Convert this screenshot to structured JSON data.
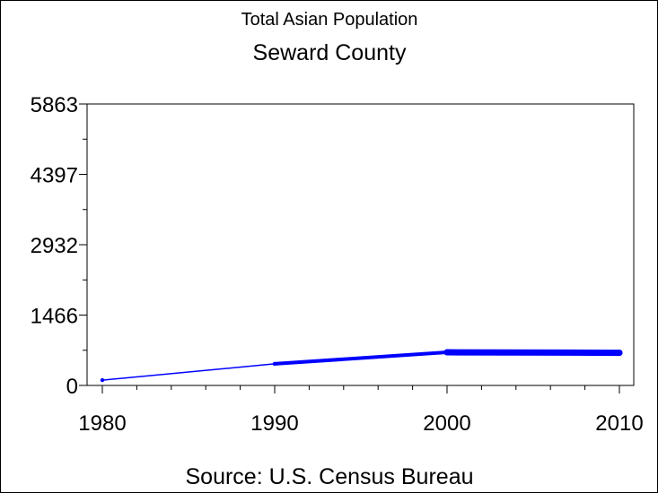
{
  "chart_data": {
    "type": "line",
    "title": "Total Asian Population",
    "subtitle": "Seward County",
    "source": "Source:  U.S.  Census  Bureau",
    "xlabel": "",
    "ylabel": "",
    "x_tick_labels": [
      "1980",
      "1990",
      "2000",
      "2010"
    ],
    "y_tick_labels": [
      "0",
      "1466",
      "2932",
      "4397",
      "5863"
    ],
    "xlim": [
      1980,
      2010
    ],
    "ylim": [
      0,
      5863
    ],
    "grid": false,
    "line_color": "#0000ff",
    "series": [
      {
        "x": [
          1980,
          1990,
          2000,
          2010
        ],
        "values": [
          110,
          450,
          690,
          680
        ]
      }
    ]
  }
}
